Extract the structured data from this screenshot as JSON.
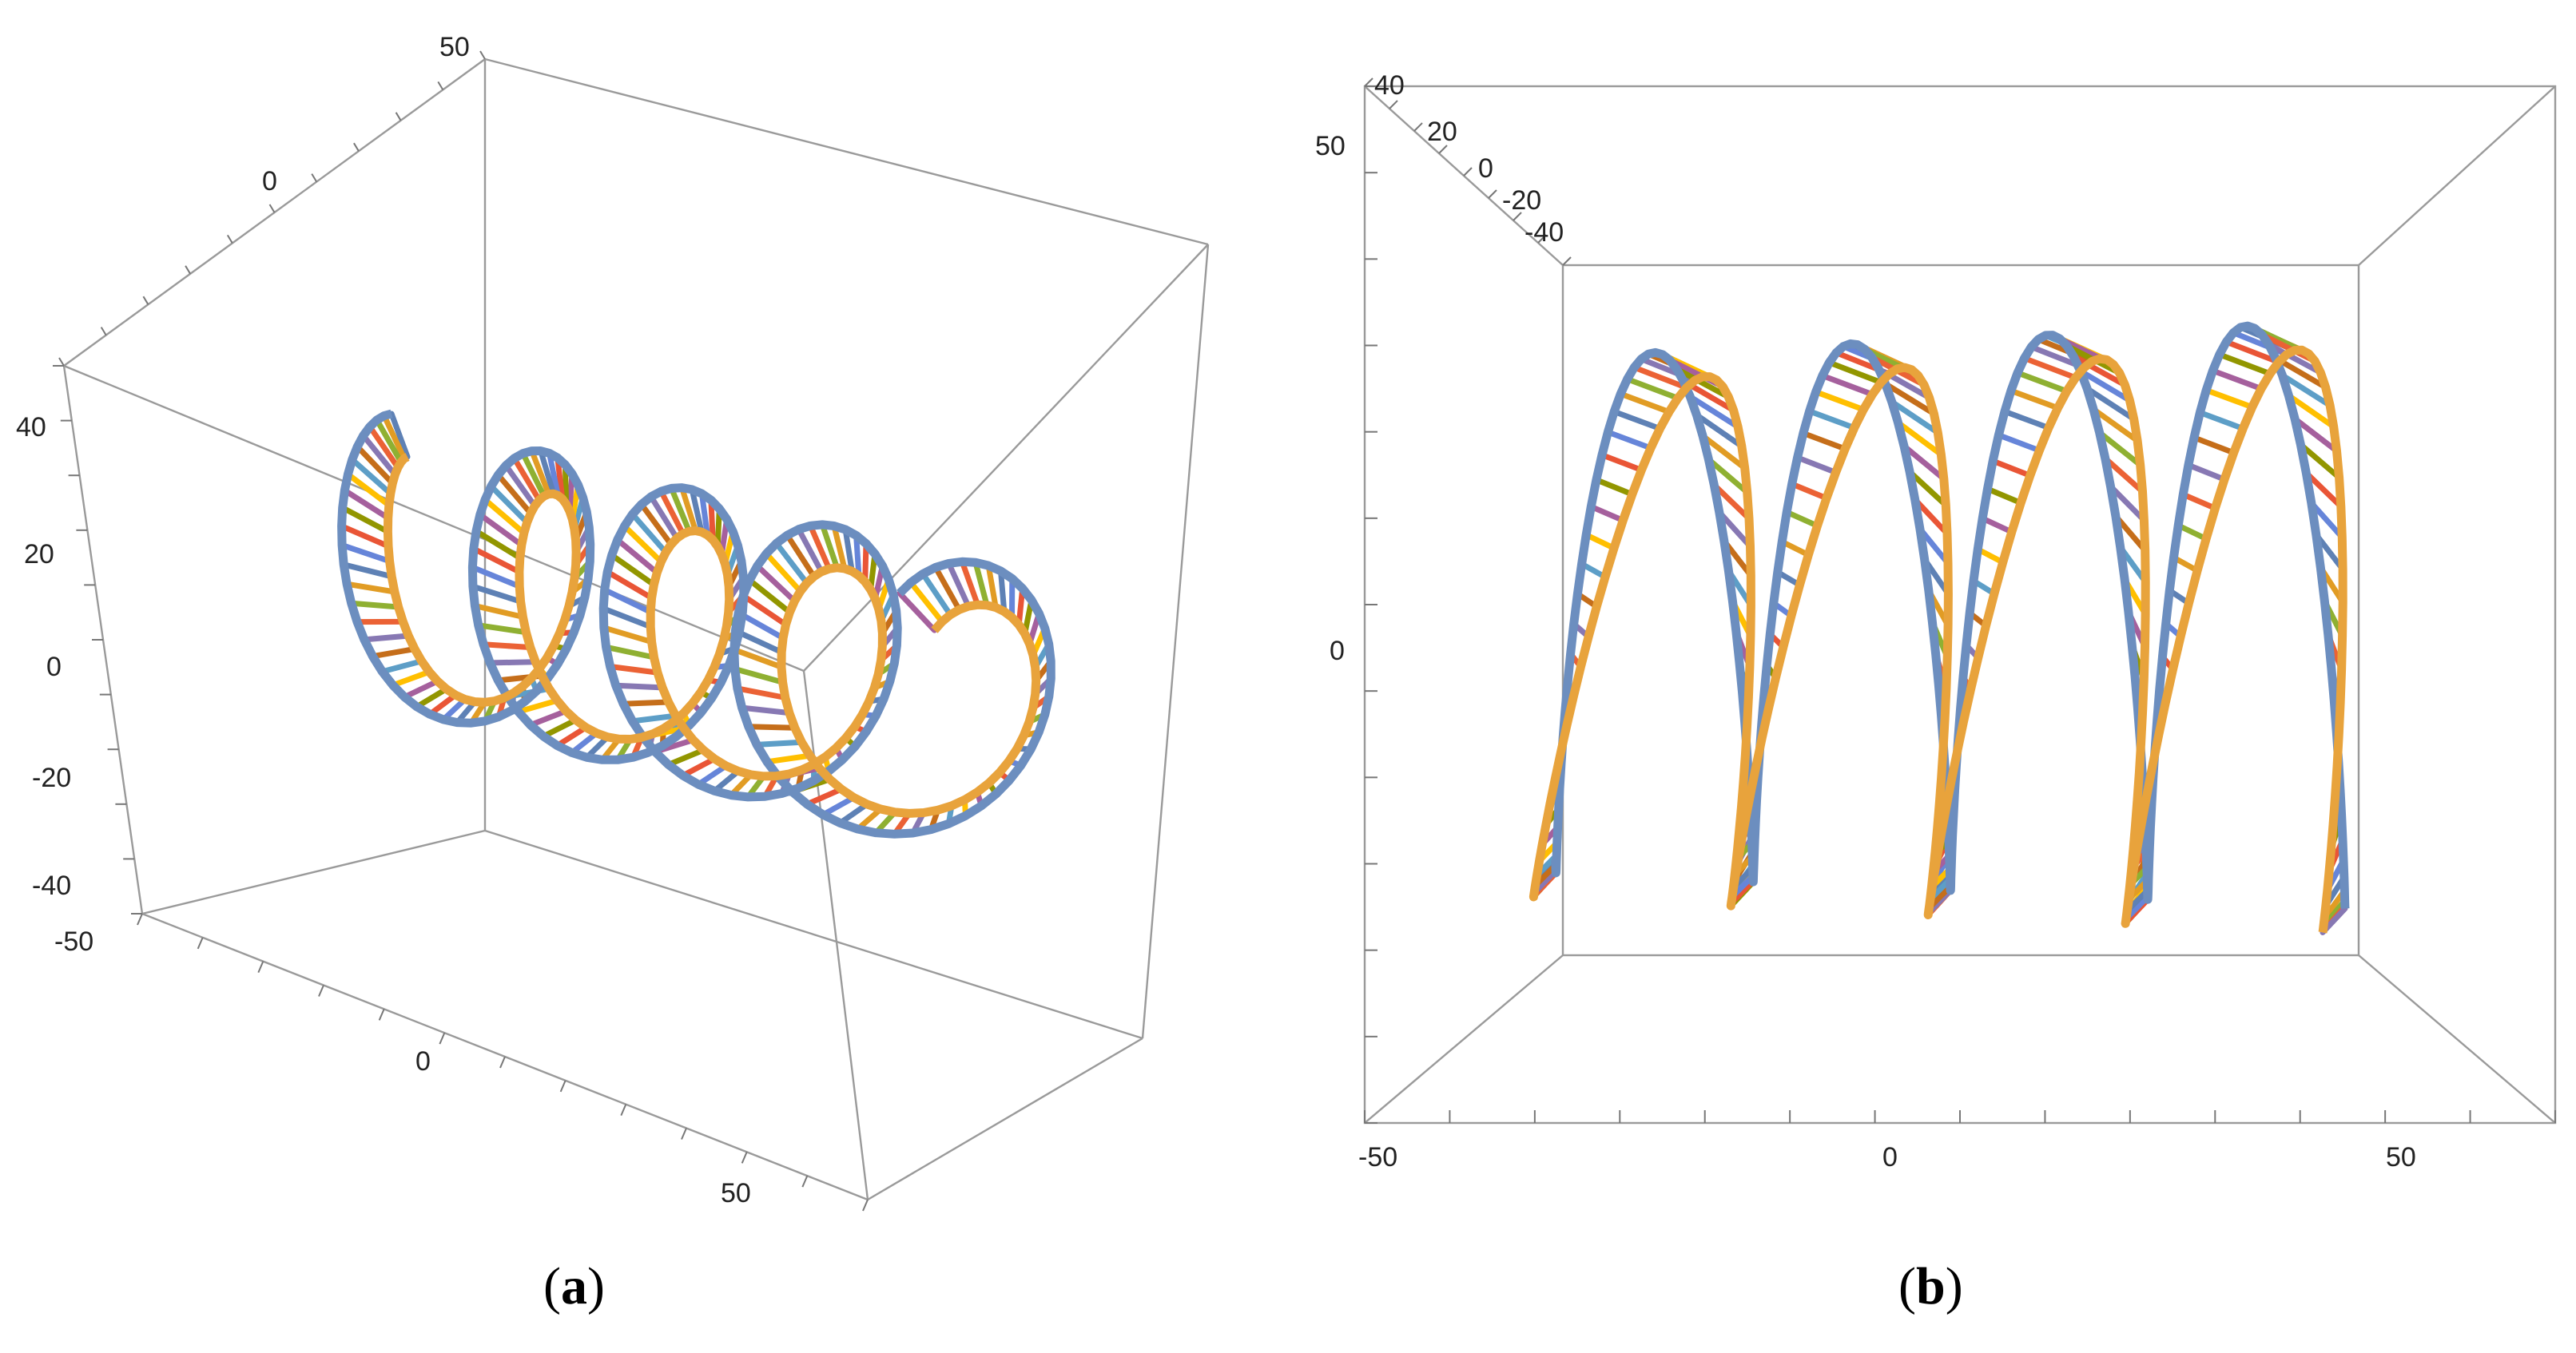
{
  "figure": {
    "panels": [
      {
        "id": "a",
        "label": "a",
        "view": "perspective",
        "axes": {
          "x_ticks": [
            "-50",
            "0",
            "50"
          ],
          "y_ticks": [
            "0",
            "50"
          ],
          "z_ticks": [
            "40",
            "20",
            "0",
            "-20",
            "-40"
          ]
        }
      },
      {
        "id": "b",
        "label": "b",
        "view": "front",
        "axes": {
          "x_ticks": [
            "-50",
            "0",
            "50"
          ],
          "y_ticks": [
            "50",
            "0"
          ],
          "depth_ticks": [
            "40",
            "20",
            "0",
            "-20",
            "-40"
          ]
        }
      }
    ],
    "ribbon": {
      "edge_color": "#6c8ebf",
      "edge_color_2": "#e8a33c",
      "rung_palette": [
        "#5e81b5",
        "#e19c24",
        "#8fb032",
        "#eb6235",
        "#8778b3",
        "#c56e1a",
        "#5d9ec7",
        "#ffbf00",
        "#a5609d",
        "#929600",
        "#e95536",
        "#6685d9"
      ]
    }
  }
}
